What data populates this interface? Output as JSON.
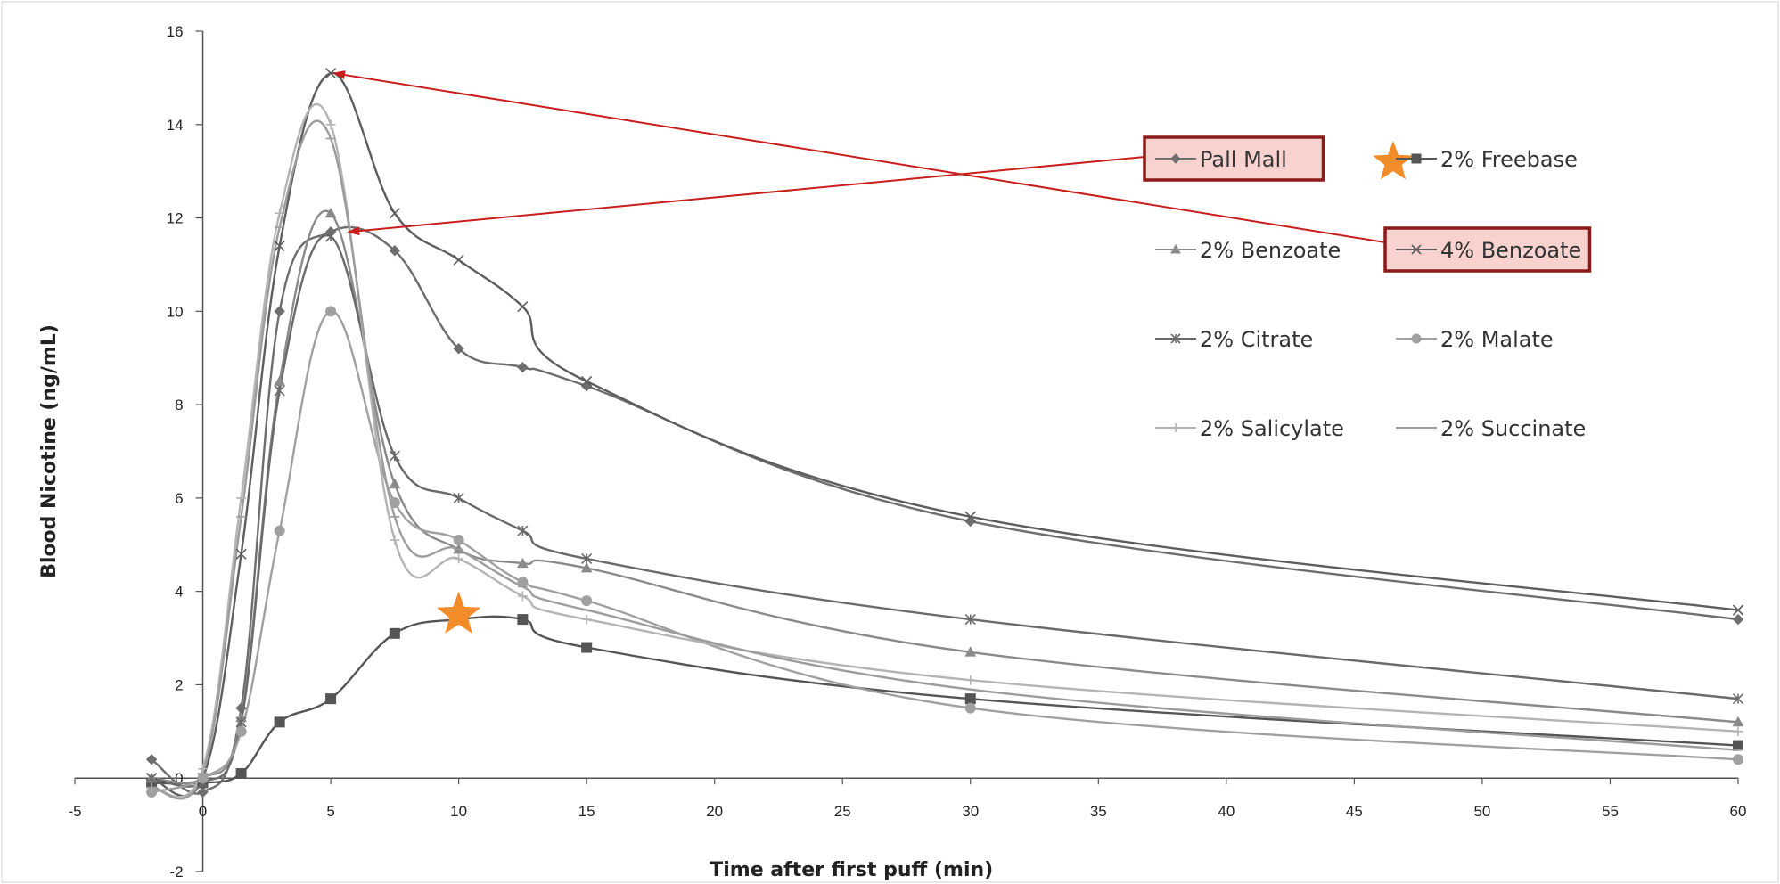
{
  "chart_data": {
    "type": "line",
    "title": "",
    "xlabel": "Time after first puff (min)",
    "ylabel": "Blood Nicotine (ng/mL)",
    "xlim": [
      -5,
      60
    ],
    "ylim": [
      -2,
      16
    ],
    "x_ticks": [
      -5,
      0,
      5,
      10,
      15,
      20,
      25,
      30,
      35,
      40,
      45,
      50,
      55,
      60
    ],
    "y_ticks": [
      -2,
      0,
      2,
      4,
      6,
      8,
      10,
      12,
      14,
      16
    ],
    "grid": false,
    "legend_position": "top-right",
    "series": [
      {
        "name": "Pall Mall",
        "marker": "diamond",
        "color": "#6e6e6e",
        "highlighted": true,
        "x": [
          -2,
          0,
          1.5,
          3,
          5,
          7.5,
          10,
          12.5,
          15,
          30,
          60
        ],
        "y": [
          0.4,
          -0.3,
          1.5,
          10.0,
          11.7,
          11.3,
          9.2,
          8.8,
          8.4,
          5.5,
          3.4
        ]
      },
      {
        "name": "2% Freebase",
        "marker": "square",
        "color": "#555555",
        "annotated_star": true,
        "x": [
          -2,
          0,
          1.5,
          3,
          5,
          7.5,
          10,
          12.5,
          15,
          30,
          60
        ],
        "y": [
          -0.1,
          -0.1,
          0.1,
          1.2,
          1.7,
          3.1,
          3.4,
          3.4,
          2.8,
          1.7,
          0.7
        ]
      },
      {
        "name": "2% Benzoate",
        "marker": "triangle",
        "color": "#8a8a8a",
        "x": [
          -2,
          0,
          1.5,
          3,
          5,
          7.5,
          10,
          12.5,
          15,
          30,
          60
        ],
        "y": [
          0.0,
          0.0,
          1.3,
          8.5,
          12.1,
          6.3,
          4.9,
          4.6,
          4.5,
          2.7,
          1.2
        ]
      },
      {
        "name": "4% Benzoate",
        "marker": "x",
        "color": "#5e5e5e",
        "highlighted": true,
        "x": [
          -2,
          0,
          1.5,
          3,
          5,
          7.5,
          10,
          12.5,
          15,
          30,
          60
        ],
        "y": [
          0.0,
          0.0,
          4.8,
          11.4,
          15.1,
          12.1,
          11.1,
          10.1,
          8.5,
          5.6,
          3.6
        ]
      },
      {
        "name": "2% Citrate",
        "marker": "asterisk",
        "color": "#6a6a6a",
        "x": [
          -2,
          0,
          1.5,
          3,
          5,
          7.5,
          10,
          12.5,
          15,
          30,
          60
        ],
        "y": [
          0.0,
          -0.1,
          1.2,
          8.3,
          11.6,
          6.9,
          6.0,
          5.3,
          4.7,
          3.4,
          1.7
        ]
      },
      {
        "name": "2% Malate",
        "marker": "circle",
        "color": "#a0a0a0",
        "x": [
          -2,
          0,
          1.5,
          3,
          5,
          7.5,
          10,
          12.5,
          15,
          30,
          60
        ],
        "y": [
          -0.3,
          0.0,
          1.0,
          5.3,
          10.0,
          5.9,
          5.1,
          4.2,
          3.8,
          1.5,
          0.4
        ]
      },
      {
        "name": "2% Salicylate",
        "marker": "plus",
        "color": "#b4b4b4",
        "x": [
          -2,
          0,
          1.5,
          3,
          5,
          7.5,
          10,
          12.5,
          15,
          30,
          60
        ],
        "y": [
          -0.2,
          0.2,
          6.0,
          12.1,
          14.0,
          5.1,
          4.7,
          3.9,
          3.4,
          2.1,
          1.0
        ]
      },
      {
        "name": "2% Succinate",
        "marker": "dash",
        "color": "#9c9c9c",
        "x": [
          -2,
          0,
          1.5,
          3,
          5,
          7.5,
          10,
          12.5,
          15,
          30,
          60
        ],
        "y": [
          -0.2,
          0.1,
          5.6,
          11.8,
          13.7,
          5.6,
          4.9,
          4.1,
          3.6,
          1.9,
          0.6
        ]
      }
    ],
    "annotations": {
      "star_color": "#f28c28",
      "highlight_fill": "#f7d2cf",
      "highlight_border": "#8b1a1a",
      "arrow_color": "#c81e1e",
      "arrows": [
        {
          "from_series": "Pall Mall",
          "to_point": [
            5.7,
            11.7
          ]
        },
        {
          "from_series": "4% Benzoate",
          "to_point": [
            5,
            15.1
          ]
        }
      ],
      "star_point": [
        10,
        3.5
      ]
    }
  }
}
